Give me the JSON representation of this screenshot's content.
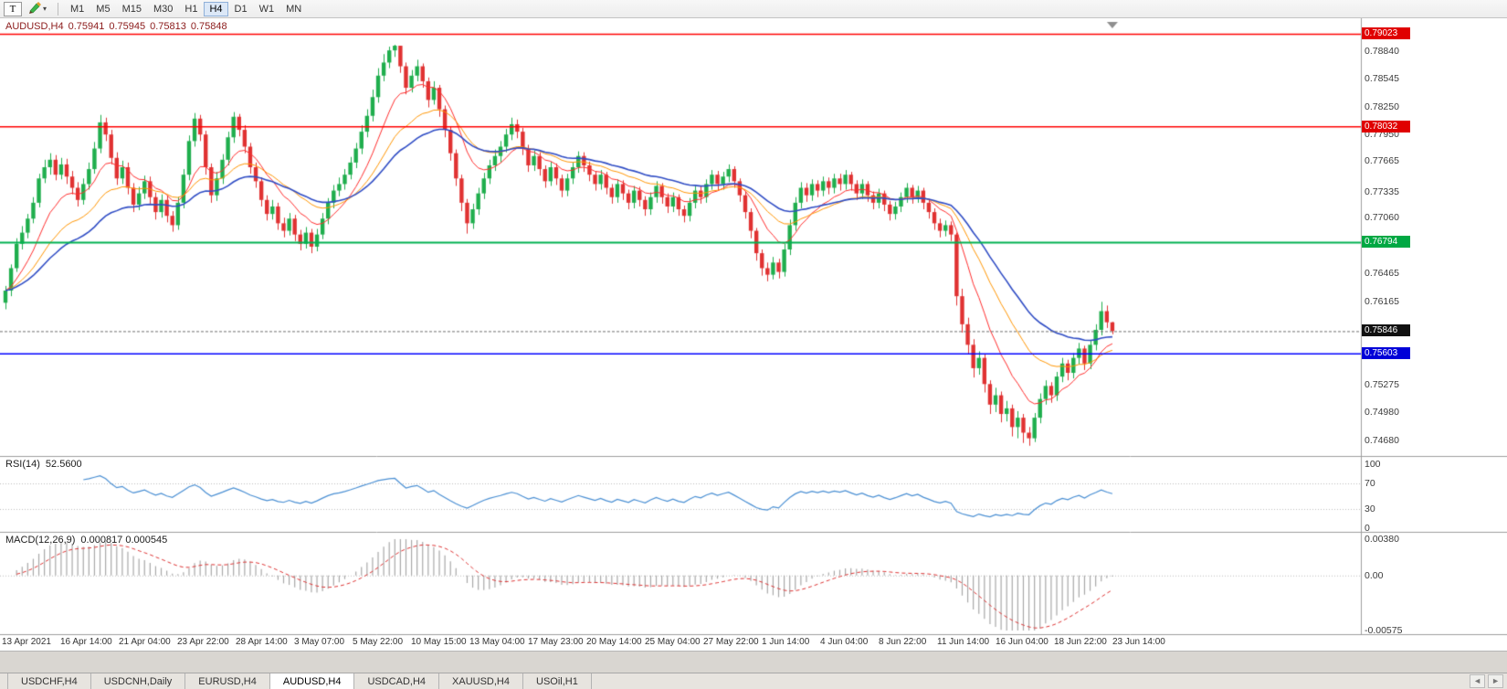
{
  "toolbar": {
    "t_label": "T",
    "timeframes": [
      "M1",
      "M5",
      "M15",
      "M30",
      "H1",
      "H4",
      "D1",
      "W1",
      "MN"
    ],
    "active_timeframe": "H4"
  },
  "icons": {
    "dropdown": "▾",
    "scroll_left": "◄",
    "scroll_right": "►"
  },
  "chart": {
    "symbol": "AUDUSD,H4",
    "ohlc": {
      "open": "0.75941",
      "high": "0.75945",
      "low": "0.75813",
      "close": "0.75848"
    },
    "price_axis": {
      "ticks": [
        "0.78840",
        "0.78545",
        "0.78250",
        "0.77950",
        "0.77665",
        "0.77335",
        "0.77060",
        "0.76465",
        "0.76165",
        "0.75275",
        "0.74980",
        "0.74680"
      ],
      "tags": [
        {
          "text": "0.79023",
          "value": 0.79023,
          "color": "#e00000"
        },
        {
          "text": "0.78032",
          "value": 0.78032,
          "color": "#e00000"
        },
        {
          "text": "0.76794",
          "value": 0.76794,
          "color": "#00a843"
        },
        {
          "text": "0.75846",
          "value": 0.75846,
          "color": "#111111"
        },
        {
          "text": "0.75603",
          "value": 0.75603,
          "color": "#0000d8"
        }
      ]
    },
    "time_axis": [
      "13 Apr 2021",
      "16 Apr 14:00",
      "21 Apr 04:00",
      "23 Apr 22:00",
      "28 Apr 14:00",
      "3 May 07:00",
      "5 May 22:00",
      "10 May 15:00",
      "13 May 04:00",
      "17 May 23:00",
      "20 May 14:00",
      "25 May 04:00",
      "27 May 22:00",
      "1 Jun 14:00",
      "4 Jun 04:00",
      "8 Jun 22:00",
      "11 Jun 14:00",
      "16 Jun 04:00",
      "18 Jun 22:00",
      "23 Jun 14:00"
    ]
  },
  "chart_data": {
    "type": "candlestick",
    "symbol": "AUDUSD",
    "timeframe": "H4",
    "price_range": {
      "top": 0.79135,
      "bottom": 0.7453
    },
    "levels": [
      {
        "price": 0.79023,
        "color": "#ff0000",
        "width": 1.5
      },
      {
        "price": 0.78032,
        "color": "#ff0000",
        "width": 1.5
      },
      {
        "price": 0.76794,
        "color": "#00b050",
        "width": 2
      },
      {
        "price": 0.75603,
        "color": "#0000ff",
        "width": 1.5
      }
    ],
    "current_bid": 0.75846,
    "overlays": [
      {
        "name": "ma-fast",
        "type": "ema",
        "period": 10,
        "color": "#ff2d2d",
        "width": 1
      },
      {
        "name": "ma-mid",
        "type": "ema",
        "period": 21,
        "color": "#ff9500",
        "width": 1
      },
      {
        "name": "ma-slow",
        "type": "ema",
        "period": 34,
        "color": "#2f4cc4",
        "width": 1.6
      }
    ],
    "candles": [
      [
        0.7615,
        0.7633,
        0.7608,
        0.7628
      ],
      [
        0.7628,
        0.7656,
        0.7622,
        0.7652
      ],
      [
        0.7652,
        0.7684,
        0.7648,
        0.7678
      ],
      [
        0.7678,
        0.7697,
        0.7672,
        0.769
      ],
      [
        0.769,
        0.771,
        0.7684,
        0.7705
      ],
      [
        0.7705,
        0.7728,
        0.77,
        0.7722
      ],
      [
        0.7722,
        0.7753,
        0.7717,
        0.7748
      ],
      [
        0.7748,
        0.7768,
        0.7743,
        0.776
      ],
      [
        0.776,
        0.7775,
        0.7752,
        0.7768
      ],
      [
        0.7768,
        0.7773,
        0.7746,
        0.7752
      ],
      [
        0.7752,
        0.777,
        0.7747,
        0.7763
      ],
      [
        0.7763,
        0.7769,
        0.7742,
        0.775
      ],
      [
        0.775,
        0.7756,
        0.7731,
        0.7738
      ],
      [
        0.7738,
        0.7744,
        0.7718,
        0.7725
      ],
      [
        0.7725,
        0.7748,
        0.772,
        0.7742
      ],
      [
        0.7742,
        0.7765,
        0.7736,
        0.7758
      ],
      [
        0.7758,
        0.7787,
        0.7753,
        0.778
      ],
      [
        0.778,
        0.7816,
        0.7775,
        0.7808
      ],
      [
        0.7808,
        0.7813,
        0.7788,
        0.7795
      ],
      [
        0.7795,
        0.78,
        0.7763,
        0.777
      ],
      [
        0.777,
        0.7776,
        0.7741,
        0.7748
      ],
      [
        0.7748,
        0.7767,
        0.7742,
        0.776
      ],
      [
        0.776,
        0.7765,
        0.7731,
        0.7738
      ],
      [
        0.7738,
        0.7743,
        0.7712,
        0.772
      ],
      [
        0.772,
        0.7739,
        0.7714,
        0.7732
      ],
      [
        0.7732,
        0.7751,
        0.7726,
        0.7745
      ],
      [
        0.7745,
        0.775,
        0.7721,
        0.7728
      ],
      [
        0.7728,
        0.7733,
        0.7704,
        0.7712
      ],
      [
        0.7712,
        0.7731,
        0.7706,
        0.7725
      ],
      [
        0.7725,
        0.773,
        0.7701,
        0.7708
      ],
      [
        0.7708,
        0.7713,
        0.7691,
        0.7698
      ],
      [
        0.7698,
        0.7728,
        0.7693,
        0.7722
      ],
      [
        0.7722,
        0.7758,
        0.7716,
        0.7752
      ],
      [
        0.7752,
        0.7794,
        0.7746,
        0.7788
      ],
      [
        0.7788,
        0.7818,
        0.7782,
        0.7812
      ],
      [
        0.7812,
        0.7816,
        0.7788,
        0.7795
      ],
      [
        0.7795,
        0.7799,
        0.7752,
        0.776
      ],
      [
        0.776,
        0.7764,
        0.7722,
        0.773
      ],
      [
        0.773,
        0.7755,
        0.7724,
        0.7748
      ],
      [
        0.7748,
        0.7774,
        0.7742,
        0.7768
      ],
      [
        0.7768,
        0.7798,
        0.7762,
        0.7792
      ],
      [
        0.7792,
        0.7819,
        0.7786,
        0.7814
      ],
      [
        0.7814,
        0.7817,
        0.7793,
        0.78
      ],
      [
        0.78,
        0.7805,
        0.7775,
        0.7782
      ],
      [
        0.7782,
        0.7786,
        0.7753,
        0.776
      ],
      [
        0.776,
        0.7765,
        0.7738,
        0.7745
      ],
      [
        0.7745,
        0.7749,
        0.7718,
        0.7725
      ],
      [
        0.7725,
        0.773,
        0.7703,
        0.771
      ],
      [
        0.771,
        0.7725,
        0.7704,
        0.7718
      ],
      [
        0.7718,
        0.7722,
        0.7693,
        0.77
      ],
      [
        0.77,
        0.7706,
        0.7685,
        0.7692
      ],
      [
        0.7692,
        0.7711,
        0.7687,
        0.7705
      ],
      [
        0.7705,
        0.7709,
        0.7681,
        0.7688
      ],
      [
        0.7688,
        0.7693,
        0.7671,
        0.7678
      ],
      [
        0.7678,
        0.7696,
        0.7673,
        0.769
      ],
      [
        0.769,
        0.7694,
        0.7668,
        0.7675
      ],
      [
        0.7675,
        0.7694,
        0.767,
        0.7688
      ],
      [
        0.7688,
        0.7711,
        0.7683,
        0.7705
      ],
      [
        0.7705,
        0.7727,
        0.7699,
        0.7722
      ],
      [
        0.7722,
        0.7741,
        0.7716,
        0.7735
      ],
      [
        0.7735,
        0.7749,
        0.7729,
        0.7742
      ],
      [
        0.7742,
        0.7758,
        0.7736,
        0.7752
      ],
      [
        0.7752,
        0.7771,
        0.7747,
        0.7765
      ],
      [
        0.7765,
        0.7786,
        0.7759,
        0.778
      ],
      [
        0.778,
        0.7805,
        0.7774,
        0.7798
      ],
      [
        0.7798,
        0.7822,
        0.7792,
        0.7815
      ],
      [
        0.7815,
        0.7843,
        0.7809,
        0.7835
      ],
      [
        0.7835,
        0.7866,
        0.7829,
        0.7858
      ],
      [
        0.7858,
        0.7881,
        0.7852,
        0.7872
      ],
      [
        0.7872,
        0.7889,
        0.7866,
        0.7885
      ],
      [
        0.7885,
        0.7891,
        0.7878,
        0.789
      ],
      [
        0.789,
        0.789,
        0.7861,
        0.7868
      ],
      [
        0.7868,
        0.7872,
        0.7838,
        0.7845
      ],
      [
        0.7845,
        0.7864,
        0.784,
        0.7858
      ],
      [
        0.7858,
        0.7875,
        0.7852,
        0.7868
      ],
      [
        0.7868,
        0.7871,
        0.7845,
        0.7852
      ],
      [
        0.7852,
        0.7856,
        0.7824,
        0.7832
      ],
      [
        0.7832,
        0.7852,
        0.7827,
        0.7845
      ],
      [
        0.7845,
        0.7848,
        0.7814,
        0.7822
      ],
      [
        0.7822,
        0.7826,
        0.7792,
        0.78
      ],
      [
        0.78,
        0.7804,
        0.7767,
        0.7775
      ],
      [
        0.7775,
        0.7779,
        0.774,
        0.7748
      ],
      [
        0.7748,
        0.7752,
        0.7713,
        0.7722
      ],
      [
        0.7722,
        0.7726,
        0.7689,
        0.77
      ],
      [
        0.77,
        0.7721,
        0.7694,
        0.7715
      ],
      [
        0.7715,
        0.7738,
        0.7709,
        0.7732
      ],
      [
        0.7732,
        0.7754,
        0.7726,
        0.7748
      ],
      [
        0.7748,
        0.7768,
        0.7742,
        0.7762
      ],
      [
        0.7762,
        0.7779,
        0.7756,
        0.7772
      ],
      [
        0.7772,
        0.7788,
        0.7765,
        0.7782
      ],
      [
        0.7782,
        0.7801,
        0.7776,
        0.7795
      ],
      [
        0.7795,
        0.7813,
        0.7789,
        0.7806
      ],
      [
        0.7806,
        0.7811,
        0.7791,
        0.7798
      ],
      [
        0.7798,
        0.7802,
        0.7773,
        0.778
      ],
      [
        0.778,
        0.7784,
        0.7755,
        0.7762
      ],
      [
        0.7762,
        0.7778,
        0.7756,
        0.7772
      ],
      [
        0.7772,
        0.7776,
        0.7751,
        0.7758
      ],
      [
        0.7758,
        0.7762,
        0.7738,
        0.7745
      ],
      [
        0.7745,
        0.7766,
        0.774,
        0.776
      ],
      [
        0.776,
        0.7764,
        0.7741,
        0.7748
      ],
      [
        0.7748,
        0.7752,
        0.7728,
        0.7735
      ],
      [
        0.7735,
        0.7753,
        0.7729,
        0.7748
      ],
      [
        0.7748,
        0.7765,
        0.7742,
        0.776
      ],
      [
        0.776,
        0.7777,
        0.7754,
        0.7772
      ],
      [
        0.7772,
        0.7776,
        0.7755,
        0.7762
      ],
      [
        0.7762,
        0.7766,
        0.7745,
        0.7752
      ],
      [
        0.7752,
        0.7756,
        0.7735,
        0.7742
      ],
      [
        0.7742,
        0.7757,
        0.7736,
        0.7752
      ],
      [
        0.7752,
        0.7755,
        0.7731,
        0.7738
      ],
      [
        0.7738,
        0.7742,
        0.7721,
        0.7728
      ],
      [
        0.7728,
        0.7747,
        0.7722,
        0.7742
      ],
      [
        0.7742,
        0.7746,
        0.7725,
        0.7732
      ],
      [
        0.7732,
        0.7736,
        0.7715,
        0.7722
      ],
      [
        0.7722,
        0.774,
        0.7716,
        0.7735
      ],
      [
        0.7735,
        0.7739,
        0.7718,
        0.7725
      ],
      [
        0.7725,
        0.7729,
        0.7708,
        0.7715
      ],
      [
        0.7715,
        0.7733,
        0.7709,
        0.7728
      ],
      [
        0.7728,
        0.7745,
        0.7722,
        0.774
      ],
      [
        0.774,
        0.7743,
        0.7721,
        0.7728
      ],
      [
        0.7728,
        0.7732,
        0.7711,
        0.7718
      ],
      [
        0.7718,
        0.7733,
        0.7712,
        0.7728
      ],
      [
        0.7728,
        0.7731,
        0.7708,
        0.7715
      ],
      [
        0.7715,
        0.7719,
        0.7701,
        0.7708
      ],
      [
        0.7708,
        0.7727,
        0.7702,
        0.7722
      ],
      [
        0.7722,
        0.774,
        0.7716,
        0.7735
      ],
      [
        0.7735,
        0.774,
        0.7721,
        0.7728
      ],
      [
        0.7728,
        0.7747,
        0.7722,
        0.7742
      ],
      [
        0.7742,
        0.7757,
        0.7736,
        0.7752
      ],
      [
        0.7752,
        0.7756,
        0.7735,
        0.7742
      ],
      [
        0.7742,
        0.7755,
        0.7736,
        0.775
      ],
      [
        0.775,
        0.7763,
        0.7744,
        0.7758
      ],
      [
        0.7758,
        0.7761,
        0.7738,
        0.7745
      ],
      [
        0.7745,
        0.7748,
        0.7723,
        0.773
      ],
      [
        0.773,
        0.7734,
        0.7705,
        0.7712
      ],
      [
        0.7712,
        0.7716,
        0.7684,
        0.7692
      ],
      [
        0.7692,
        0.7695,
        0.766,
        0.7668
      ],
      [
        0.7668,
        0.7672,
        0.7644,
        0.7652
      ],
      [
        0.7652,
        0.7658,
        0.7638,
        0.7645
      ],
      [
        0.7645,
        0.7664,
        0.764,
        0.7658
      ],
      [
        0.7658,
        0.7662,
        0.7641,
        0.7648
      ],
      [
        0.7648,
        0.7678,
        0.7643,
        0.7672
      ],
      [
        0.7672,
        0.7704,
        0.7666,
        0.7698
      ],
      [
        0.7698,
        0.7728,
        0.7692,
        0.7722
      ],
      [
        0.7722,
        0.7744,
        0.7716,
        0.7738
      ],
      [
        0.7738,
        0.7743,
        0.7723,
        0.773
      ],
      [
        0.773,
        0.7747,
        0.7724,
        0.7742
      ],
      [
        0.7742,
        0.7746,
        0.7728,
        0.7735
      ],
      [
        0.7735,
        0.775,
        0.7729,
        0.7745
      ],
      [
        0.7745,
        0.7749,
        0.7731,
        0.7738
      ],
      [
        0.7738,
        0.7753,
        0.7732,
        0.7748
      ],
      [
        0.7748,
        0.7753,
        0.7735,
        0.7742
      ],
      [
        0.7742,
        0.7757,
        0.7736,
        0.7752
      ],
      [
        0.7752,
        0.7755,
        0.7735,
        0.7742
      ],
      [
        0.7742,
        0.7746,
        0.7725,
        0.7732
      ],
      [
        0.7732,
        0.7747,
        0.7726,
        0.7742
      ],
      [
        0.7742,
        0.7745,
        0.7723,
        0.773
      ],
      [
        0.773,
        0.7734,
        0.7715,
        0.7722
      ],
      [
        0.7722,
        0.7737,
        0.7716,
        0.7732
      ],
      [
        0.7732,
        0.7735,
        0.7713,
        0.772
      ],
      [
        0.772,
        0.7724,
        0.7703,
        0.771
      ],
      [
        0.771,
        0.7723,
        0.7704,
        0.7718
      ],
      [
        0.7718,
        0.7733,
        0.7712,
        0.7728
      ],
      [
        0.7728,
        0.7743,
        0.7722,
        0.7738
      ],
      [
        0.7738,
        0.7741,
        0.7721,
        0.7728
      ],
      [
        0.7728,
        0.774,
        0.7722,
        0.7735
      ],
      [
        0.7735,
        0.7738,
        0.7715,
        0.7722
      ],
      [
        0.7722,
        0.7726,
        0.7705,
        0.7712
      ],
      [
        0.7712,
        0.7716,
        0.7693,
        0.77
      ],
      [
        0.77,
        0.7705,
        0.7685,
        0.7692
      ],
      [
        0.7692,
        0.7703,
        0.7686,
        0.7698
      ],
      [
        0.7698,
        0.7702,
        0.7681,
        0.7688
      ],
      [
        0.7688,
        0.769,
        0.7612,
        0.7622
      ],
      [
        0.7622,
        0.763,
        0.7583,
        0.7592
      ],
      [
        0.7592,
        0.7599,
        0.756,
        0.757
      ],
      [
        0.757,
        0.7576,
        0.7535,
        0.7545
      ],
      [
        0.7545,
        0.7563,
        0.7538,
        0.7556
      ],
      [
        0.7556,
        0.756,
        0.7519,
        0.7528
      ],
      [
        0.7528,
        0.7532,
        0.7496,
        0.7506
      ],
      [
        0.7506,
        0.7524,
        0.7498,
        0.7516
      ],
      [
        0.7516,
        0.752,
        0.7487,
        0.7496
      ],
      [
        0.7496,
        0.751,
        0.7488,
        0.7502
      ],
      [
        0.7502,
        0.7506,
        0.7472,
        0.7482
      ],
      [
        0.7482,
        0.7499,
        0.747,
        0.7492
      ],
      [
        0.7492,
        0.7496,
        0.7465,
        0.7476
      ],
      [
        0.7476,
        0.7482,
        0.7462,
        0.747
      ],
      [
        0.747,
        0.7497,
        0.7466,
        0.7492
      ],
      [
        0.7492,
        0.7518,
        0.7486,
        0.7512
      ],
      [
        0.7512,
        0.7532,
        0.7506,
        0.7526
      ],
      [
        0.7526,
        0.753,
        0.7508,
        0.7516
      ],
      [
        0.7516,
        0.7541,
        0.751,
        0.7536
      ],
      [
        0.7536,
        0.7556,
        0.753,
        0.755
      ],
      [
        0.755,
        0.7554,
        0.7532,
        0.754
      ],
      [
        0.754,
        0.7561,
        0.7534,
        0.7556
      ],
      [
        0.7556,
        0.7572,
        0.7549,
        0.7566
      ],
      [
        0.7566,
        0.7569,
        0.7543,
        0.755
      ],
      [
        0.755,
        0.7575,
        0.7544,
        0.757
      ],
      [
        0.757,
        0.7592,
        0.7564,
        0.7586
      ],
      [
        0.7586,
        0.7616,
        0.758,
        0.7606
      ],
      [
        0.7606,
        0.7612,
        0.7588,
        0.75941
      ],
      [
        0.75941,
        0.75945,
        0.75813,
        0.75848
      ]
    ]
  },
  "rsi": {
    "label": "RSI(14)",
    "value": "52.5600",
    "period": 14,
    "axis": [
      {
        "label": "100",
        "value": 100
      },
      {
        "label": "70",
        "value": 70
      },
      {
        "label": "30",
        "value": 30
      },
      {
        "label": "0",
        "value": 0
      }
    ],
    "levels": [
      70,
      30
    ]
  },
  "macd": {
    "label": "MACD(12,26,9)",
    "values": "0.000817 0.000545",
    "fast": 12,
    "slow": 26,
    "signal": 9,
    "axis": [
      {
        "label": "0.00380",
        "value": 0.0038
      },
      {
        "label": "0.00",
        "value": 0
      },
      {
        "label": "-0.00575",
        "value": -0.00575
      }
    ],
    "range": {
      "max": 0.0038,
      "min": -0.00575
    }
  },
  "tabs": {
    "items": [
      "USDCHF,H4",
      "USDCNH,Daily",
      "EURUSD,H4",
      "AUDUSD,H4",
      "USDCAD,H4",
      "XAUUSD,H4",
      "USOil,H1"
    ],
    "active": "AUDUSD,H4"
  },
  "colors": {
    "bull": "#1fae4d",
    "bear": "#e03232",
    "rsi_line": "#4a8fd3",
    "macd_hist": "#a8a8a8",
    "macd_signal": "#dd3333",
    "bid_line": "#6e6e6e",
    "grid_dotted": "#bdbdbd",
    "separator": "#9e9e9e",
    "shift_marker": "#8f8f8f"
  }
}
